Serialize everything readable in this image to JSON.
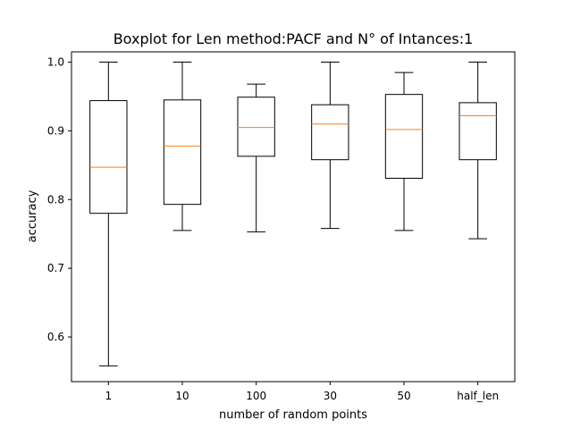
{
  "chart_data": {
    "type": "boxplot",
    "title": "Boxplot for Len method:PACF and N° of Intances:1",
    "xlabel": "number of random points",
    "ylabel": "accuracy",
    "categories": [
      "1",
      "10",
      "100",
      "30",
      "50",
      "half_len"
    ],
    "ylim": [
      0.535,
      1.015
    ],
    "yticks": [
      0.6,
      0.7,
      0.8,
      0.9,
      1.0
    ],
    "ytick_labels": [
      "0.6",
      "0.7",
      "0.8",
      "0.9",
      "1.0"
    ],
    "grid": false,
    "boxes": [
      {
        "category": "1",
        "whisker_low": 0.558,
        "q1": 0.78,
        "median": 0.847,
        "q3": 0.944,
        "whisker_high": 1.0
      },
      {
        "category": "10",
        "whisker_low": 0.755,
        "q1": 0.793,
        "median": 0.878,
        "q3": 0.945,
        "whisker_high": 1.0
      },
      {
        "category": "100",
        "whisker_low": 0.753,
        "q1": 0.863,
        "median": 0.905,
        "q3": 0.949,
        "whisker_high": 0.968
      },
      {
        "category": "30",
        "whisker_low": 0.758,
        "q1": 0.858,
        "median": 0.91,
        "q3": 0.938,
        "whisker_high": 1.0
      },
      {
        "category": "50",
        "whisker_low": 0.755,
        "q1": 0.831,
        "median": 0.902,
        "q3": 0.953,
        "whisker_high": 0.985
      },
      {
        "category": "half_len",
        "whisker_low": 0.743,
        "q1": 0.858,
        "median": 0.922,
        "q3": 0.941,
        "whisker_high": 1.0
      }
    ],
    "colors": {
      "box": "#000000",
      "median": "#ff7f0e",
      "axes": "#000000",
      "background": "#ffffff"
    }
  }
}
